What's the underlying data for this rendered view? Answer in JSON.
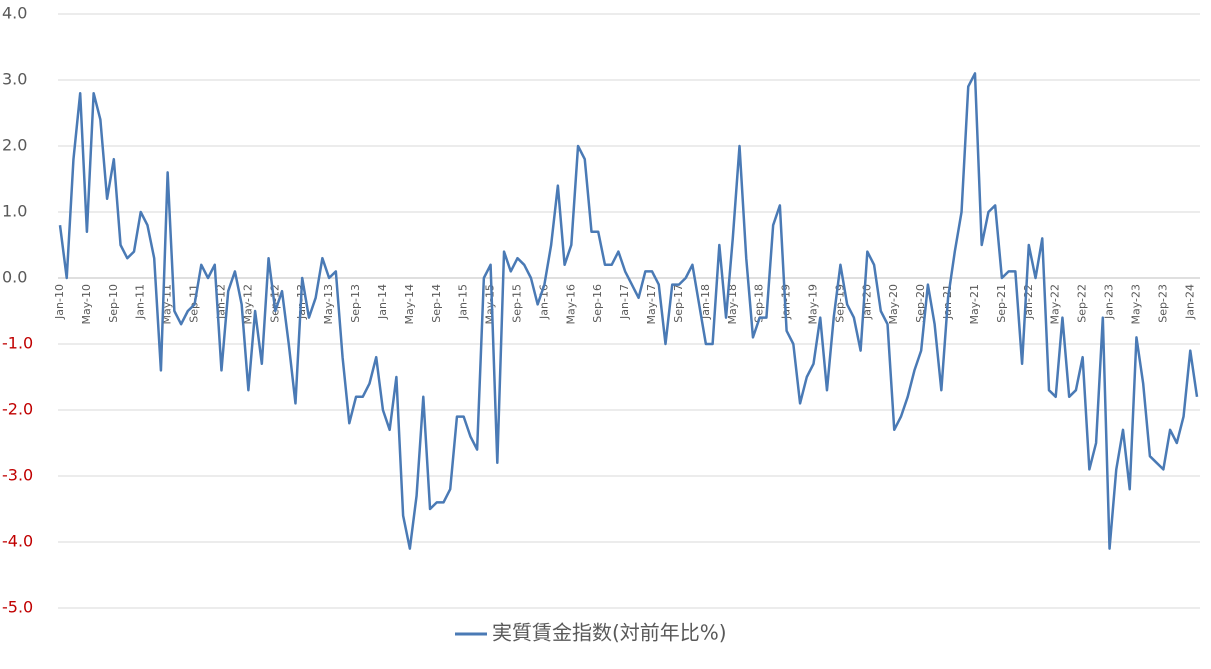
{
  "chart_data": {
    "type": "line",
    "categories": [
      "Jan-10",
      null,
      null,
      null,
      "May-10",
      null,
      null,
      null,
      "Sep-10",
      null,
      null,
      null,
      "Jan-11",
      null,
      null,
      null,
      "May-11",
      null,
      null,
      null,
      "Sep-11",
      null,
      null,
      null,
      "Jan-12",
      null,
      null,
      null,
      "May-12",
      null,
      null,
      null,
      "Sep-12",
      null,
      null,
      null,
      "Jan-13",
      null,
      null,
      null,
      "May-13",
      null,
      null,
      null,
      "Sep-13",
      null,
      null,
      null,
      "Jan-14",
      null,
      null,
      null,
      "May-14",
      null,
      null,
      null,
      "Sep-14",
      null,
      null,
      null,
      "Jan-15",
      null,
      null,
      null,
      "May-15",
      null,
      null,
      null,
      "Sep-15",
      null,
      null,
      null,
      "Jan-16",
      null,
      null,
      null,
      "May-16",
      null,
      null,
      null,
      "Sep-16",
      null,
      null,
      null,
      "Jan-17",
      null,
      null,
      null,
      "May-17",
      null,
      null,
      null,
      "Sep-17",
      null,
      null,
      null,
      "Jan-18",
      null,
      null,
      null,
      "May-18",
      null,
      null,
      null,
      "Sep-18",
      null,
      null,
      null,
      "Jan-19",
      null,
      null,
      null,
      "May-19",
      null,
      null,
      null,
      "Sep-19",
      null,
      null,
      null,
      "Jan-20",
      null,
      null,
      null,
      "May-20",
      null,
      null,
      null,
      "Sep-20",
      null,
      null,
      null,
      "Jan-21",
      null,
      null,
      null,
      "May-21",
      null,
      null,
      null,
      "Sep-21",
      null,
      null,
      null,
      "Jan-22",
      null,
      null,
      null,
      "May-22",
      null,
      null,
      null,
      "Sep-22",
      null,
      null,
      null,
      "Jan-23",
      null,
      null,
      null,
      "May-23",
      null,
      null,
      null,
      "Sep-23",
      null,
      null,
      null,
      "Jan-24",
      null
    ],
    "series": [
      {
        "name": "実質賃金指数(対前年比%)",
        "color": "#4a7ab5",
        "values": [
          0.8,
          0.0,
          1.8,
          2.8,
          0.7,
          2.8,
          2.4,
          1.2,
          1.8,
          0.5,
          0.3,
          0.4,
          1.0,
          0.8,
          0.3,
          -1.4,
          1.6,
          -0.5,
          -0.7,
          -0.5,
          -0.4,
          0.2,
          0.0,
          0.2,
          -1.4,
          -0.2,
          0.1,
          -0.4,
          -1.7,
          -0.5,
          -1.3,
          0.3,
          -0.5,
          -0.2,
          -1.0,
          -1.9,
          0.0,
          -0.6,
          -0.3,
          0.3,
          0.0,
          0.1,
          -1.2,
          -2.2,
          -1.8,
          -1.8,
          -1.6,
          -1.2,
          -2.0,
          -2.3,
          -1.5,
          -3.6,
          -4.1,
          -3.3,
          -1.8,
          -3.5,
          -3.4,
          -3.4,
          -3.2,
          -2.1,
          -2.1,
          -2.4,
          -2.6,
          0.0,
          0.2,
          -2.8,
          0.4,
          0.1,
          0.3,
          0.2,
          0.0,
          -0.4,
          -0.1,
          0.5,
          1.4,
          0.2,
          0.5,
          2.0,
          1.8,
          0.7,
          0.7,
          0.2,
          0.2,
          0.4,
          0.1,
          -0.1,
          -0.3,
          0.1,
          0.1,
          -0.1,
          -1.0,
          -0.1,
          -0.1,
          0.0,
          0.2,
          -0.4,
          -1.0,
          -1.0,
          0.5,
          -0.6,
          0.6,
          2.0,
          0.3,
          -0.9,
          -0.6,
          -0.6,
          0.8,
          1.1,
          -0.8,
          -1.0,
          -1.9,
          -1.5,
          -1.3,
          -0.6,
          -1.7,
          -0.6,
          0.2,
          -0.4,
          -0.6,
          -1.1,
          0.4,
          0.2,
          -0.5,
          -0.7,
          -2.3,
          -2.1,
          -1.8,
          -1.4,
          -1.1,
          -0.1,
          -0.7,
          -1.7,
          -0.3,
          0.4,
          1.0,
          2.9,
          3.1,
          0.5,
          1.0,
          1.1,
          0.0,
          0.1,
          0.1,
          -1.3,
          0.5,
          0.0,
          0.6,
          -1.7,
          -1.8,
          -0.6,
          -1.8,
          -1.7,
          -1.2,
          -2.9,
          -2.5,
          -0.6,
          -4.1,
          -2.9,
          -2.3,
          -3.2,
          -0.9,
          -1.6,
          -2.7,
          -2.8,
          -2.9,
          -2.3,
          -2.5,
          -2.1,
          -1.1,
          -1.8
        ]
      }
    ],
    "ylim": [
      -5,
      4
    ],
    "yticks": [
      {
        "value": -5,
        "label": "-5.0"
      },
      {
        "value": -4,
        "label": "-4.0"
      },
      {
        "value": -3,
        "label": "-3.0"
      },
      {
        "value": -2,
        "label": "-2.0"
      },
      {
        "value": -1,
        "label": "-1.0"
      },
      {
        "value": 0,
        "label": "0.0"
      },
      {
        "value": 1,
        "label": "1.0"
      },
      {
        "value": 2,
        "label": "2.0"
      },
      {
        "value": 3,
        "label": "3.0"
      },
      {
        "value": 4,
        "label": "4.0"
      }
    ],
    "grid": true,
    "negative_tick_color": "#c00000",
    "legend": "bottom"
  }
}
